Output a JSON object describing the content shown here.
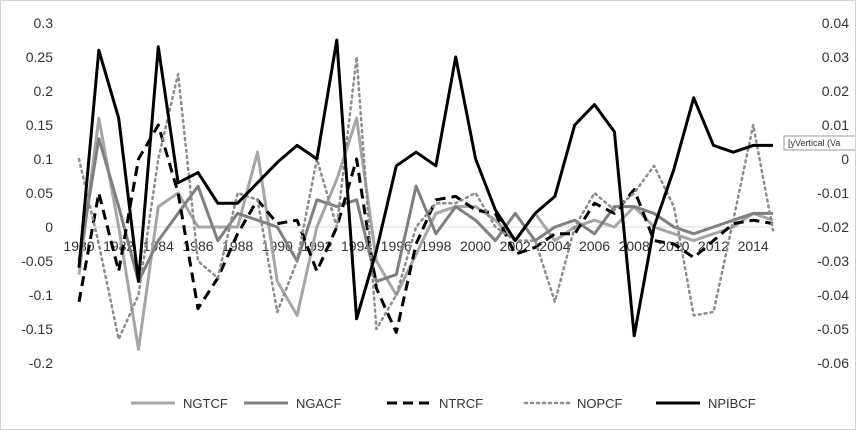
{
  "chart_data": {
    "type": "line",
    "x": [
      1980,
      1981,
      1982,
      1983,
      1984,
      1985,
      1986,
      1987,
      1988,
      1989,
      1990,
      1991,
      1992,
      1993,
      1994,
      1995,
      1996,
      1997,
      1998,
      1999,
      2000,
      2001,
      2002,
      2003,
      2004,
      2005,
      2006,
      2007,
      2008,
      2009,
      2010,
      2011,
      2012,
      2013,
      2014,
      2015
    ],
    "x_tick_labels": [
      "1980",
      "1982",
      "1984",
      "1986",
      "1988",
      "1990",
      "1992",
      "1994",
      "1996",
      "1998",
      "2000",
      "2002",
      "2004",
      "2006",
      "2008",
      "2010",
      "2012",
      "2014"
    ],
    "y_left": {
      "ylim": [
        -0.2,
        0.3
      ],
      "ticks": [
        "0.3",
        "0.25",
        "0.2",
        "0.15",
        "0.1",
        "0.05",
        "0",
        "-0.05",
        "-0.1",
        "-0.15",
        "-0.2"
      ]
    },
    "y_right": {
      "ylim": [
        -0.06,
        0.04
      ],
      "ticks": [
        "0.04",
        "0.03",
        "0.02",
        "0.01",
        "0",
        "-0.01",
        "-0.02",
        "-0.03",
        "-0.04",
        "-0.05",
        "-0.06"
      ]
    },
    "legend_position": "bottom",
    "grid": false,
    "series": [
      {
        "name": "NGTCF",
        "axis": "left",
        "color": "#a6a6a6",
        "style": "solid",
        "values": [
          -0.07,
          0.16,
          0.0,
          -0.18,
          0.03,
          0.05,
          0.0,
          0.0,
          0.0,
          0.11,
          -0.08,
          -0.13,
          0.0,
          0.07,
          0.16,
          -0.05,
          -0.1,
          -0.04,
          0.02,
          0.03,
          0.03,
          0.01,
          -0.02,
          0.02,
          -0.02,
          0.0,
          0.01,
          0.0,
          0.03,
          0.0,
          -0.01,
          -0.02,
          -0.01,
          0.0,
          0.02,
          0.01
        ]
      },
      {
        "name": "NGACF",
        "axis": "left",
        "color": "#7f7f7f",
        "style": "solid",
        "values": [
          -0.05,
          0.13,
          0.03,
          -0.08,
          -0.02,
          0.02,
          0.06,
          -0.02,
          0.02,
          0.01,
          0.0,
          -0.05,
          0.04,
          0.03,
          0.04,
          -0.08,
          -0.07,
          0.06,
          -0.01,
          0.03,
          0.01,
          -0.02,
          0.02,
          -0.02,
          0.0,
          0.01,
          -0.01,
          0.03,
          0.03,
          0.02,
          0.0,
          -0.01,
          0.0,
          0.01,
          0.02,
          0.02
        ]
      },
      {
        "name": "NTRCF",
        "axis": "right",
        "color": "#000000",
        "style": "dashed",
        "values": [
          -0.042,
          -0.01,
          -0.033,
          0.0,
          0.01,
          -0.01,
          -0.044,
          -0.035,
          -0.022,
          -0.012,
          -0.019,
          -0.018,
          -0.033,
          -0.02,
          0.0,
          -0.038,
          -0.051,
          -0.025,
          -0.012,
          -0.011,
          -0.015,
          -0.016,
          -0.028,
          -0.026,
          -0.022,
          -0.022,
          -0.013,
          -0.016,
          -0.009,
          -0.024,
          -0.025,
          -0.029,
          -0.024,
          -0.019,
          -0.018,
          -0.019
        ]
      },
      {
        "name": "NOPCF",
        "axis": "right",
        "color": "#8c8c8c",
        "style": "dotted",
        "values": [
          0.0,
          -0.025,
          -0.053,
          -0.04,
          0.0,
          0.025,
          -0.03,
          -0.035,
          -0.01,
          -0.012,
          -0.045,
          -0.03,
          0.0,
          -0.02,
          0.03,
          -0.05,
          -0.04,
          -0.02,
          -0.013,
          -0.013,
          -0.01,
          -0.02,
          -0.024,
          -0.024,
          -0.042,
          -0.02,
          -0.01,
          -0.015,
          -0.01,
          -0.002,
          -0.014,
          -0.046,
          -0.045,
          -0.018,
          0.01,
          -0.021
        ]
      },
      {
        "name": "NPIBCF",
        "axis": "right",
        "color": "#000000",
        "style": "solid",
        "values": [
          -0.032,
          0.032,
          0.012,
          -0.036,
          0.033,
          -0.007,
          -0.004,
          -0.013,
          -0.013,
          -0.007,
          -0.001,
          0.004,
          0.0,
          0.035,
          -0.047,
          -0.027,
          -0.002,
          0.002,
          -0.002,
          0.03,
          0.0,
          -0.015,
          -0.024,
          -0.016,
          -0.011,
          0.01,
          0.016,
          0.008,
          -0.052,
          -0.02,
          -0.003,
          0.018,
          0.004,
          0.002,
          0.004,
          0.004
        ]
      }
    ]
  },
  "tooltip": {
    "text": "[yVertical (Va"
  }
}
